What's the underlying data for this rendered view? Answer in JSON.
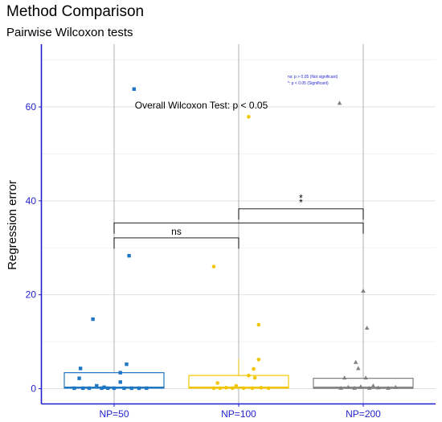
{
  "chart_data": {
    "type": "box-jitter",
    "title": "Method Comparison",
    "subtitle": "Pairwise Wilcoxon tests",
    "xlabel": "",
    "ylabel": "Regression error",
    "categories": [
      "NP=50",
      "NP=100",
      "NP=200"
    ],
    "ylim": [
      -3,
      74
    ],
    "yticks": [
      0,
      20,
      40,
      60
    ],
    "grid": true,
    "series": [
      {
        "category": "NP=50",
        "color": "#1f77c4",
        "marker": "square",
        "box": {
          "min": 0,
          "q1": 0.1,
          "median": 0.3,
          "q3": 3.4,
          "max": 3.4
        },
        "points": [
          {
            "dx": 0.16,
            "y": 63.8
          },
          {
            "dx": 0.12,
            "y": 28.3
          },
          {
            "dx": -0.17,
            "y": 14.8
          },
          {
            "dx": 0.1,
            "y": 5.2
          },
          {
            "dx": -0.27,
            "y": 4.3
          },
          {
            "dx": 0.05,
            "y": 3.4
          },
          {
            "dx": -0.28,
            "y": 2.2
          },
          {
            "dx": 0.05,
            "y": 1.4
          },
          {
            "dx": -0.14,
            "y": 0.6
          },
          {
            "dx": -0.32,
            "y": 0.1
          },
          {
            "dx": -0.25,
            "y": 0.1
          },
          {
            "dx": -0.2,
            "y": 0.1
          },
          {
            "dx": -0.1,
            "y": 0.1
          },
          {
            "dx": -0.05,
            "y": 0.1
          },
          {
            "dx": 0.0,
            "y": 0.1
          },
          {
            "dx": 0.08,
            "y": 0.1
          },
          {
            "dx": 0.14,
            "y": 0.1
          },
          {
            "dx": 0.2,
            "y": 0.1
          },
          {
            "dx": 0.26,
            "y": 0.1
          },
          {
            "dx": -0.08,
            "y": 0.3
          }
        ]
      },
      {
        "category": "NP=100",
        "color": "#f2c500",
        "marker": "circle",
        "box": {
          "min": 0,
          "q1": 0.1,
          "median": 0.3,
          "q3": 2.8,
          "max": 6.3
        },
        "points": [
          {
            "dx": 0.08,
            "y": 57.9
          },
          {
            "dx": -0.2,
            "y": 26.0
          },
          {
            "dx": 0.16,
            "y": 13.6
          },
          {
            "dx": 0.16,
            "y": 6.2
          },
          {
            "dx": 0.12,
            "y": 4.2
          },
          {
            "dx": 0.13,
            "y": 2.3
          },
          {
            "dx": 0.08,
            "y": 2.8
          },
          {
            "dx": -0.17,
            "y": 1.2
          },
          {
            "dx": -0.15,
            "y": 0.1
          },
          {
            "dx": -0.1,
            "y": 0.2
          },
          {
            "dx": -0.05,
            "y": 0.1
          },
          {
            "dx": -0.02,
            "y": 0.6
          },
          {
            "dx": 0.04,
            "y": 0.1
          },
          {
            "dx": 0.11,
            "y": 0.1
          },
          {
            "dx": 0.18,
            "y": 0.2
          },
          {
            "dx": 0.24,
            "y": 0.1
          },
          {
            "dx": -0.2,
            "y": 0.1
          }
        ]
      },
      {
        "category": "NP=200",
        "color": "#808080",
        "marker": "triangle",
        "box": {
          "min": 0,
          "q1": 0.05,
          "median": 0.3,
          "q3": 2.2,
          "max": 2.2
        },
        "points": [
          {
            "dx": -0.19,
            "y": 60.8
          },
          {
            "dx": 0.0,
            "y": 20.8
          },
          {
            "dx": 0.03,
            "y": 12.9
          },
          {
            "dx": -0.06,
            "y": 5.6
          },
          {
            "dx": -0.04,
            "y": 4.3
          },
          {
            "dx": -0.15,
            "y": 2.3
          },
          {
            "dx": 0.02,
            "y": 2.3
          },
          {
            "dx": -0.18,
            "y": 0.1
          },
          {
            "dx": -0.12,
            "y": 0.3
          },
          {
            "dx": -0.07,
            "y": 0.1
          },
          {
            "dx": -0.02,
            "y": 0.4
          },
          {
            "dx": 0.05,
            "y": 0.1
          },
          {
            "dx": 0.12,
            "y": 0.2
          },
          {
            "dx": 0.2,
            "y": 0.1
          },
          {
            "dx": 0.26,
            "y": 0.3
          },
          {
            "dx": 0.08,
            "y": 0.6
          }
        ]
      }
    ],
    "comparisons": [
      {
        "from": 0,
        "to": 1,
        "y": 32.1,
        "tick_down": 2.3,
        "label": "ns"
      },
      {
        "from": 0,
        "to": 2,
        "y": 35.3,
        "tick_down": 2.3,
        "label": ""
      },
      {
        "from": 1,
        "to": 2,
        "y": 38.3,
        "tick_down": 2.3,
        "label": "*"
      }
    ],
    "stray_marks": [
      {
        "label": "*",
        "x_pos": 1.5,
        "y": 40.2
      }
    ],
    "annotation": {
      "text": "Overall Wilcoxon Test: p < 0.05",
      "x_pos": 0.7,
      "y": 60.3
    },
    "legend_notes": [
      "ns: p > 0.05 (Not significant)",
      "*: p < 0.05 (Significant)"
    ]
  }
}
